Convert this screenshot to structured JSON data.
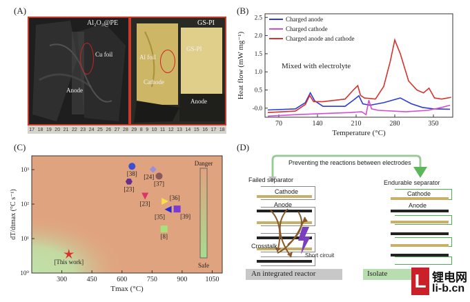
{
  "panel_labels": {
    "a": "(A)",
    "b": "(B)",
    "c": "(C)",
    "d": "(D)"
  },
  "panel_a": {
    "left_title": "Al₂O₃@PE",
    "left_cu": "Cu foil",
    "left_anode": "Anode",
    "right_title": "GS-PI",
    "right_al": "Al foil",
    "right_gspi": "GS-PI",
    "right_cathode": "Cathode",
    "right_anode": "Anode",
    "ruler_left": [
      "17",
      "18",
      "19",
      "20",
      "21",
      "22",
      "23",
      "24",
      "25",
      "26",
      "27",
      "28",
      "29"
    ],
    "ruler_right": [
      "8",
      "9",
      "10",
      "11",
      "12",
      "13",
      "14",
      "15",
      "16",
      "17",
      "18"
    ]
  },
  "panel_b": {
    "annotation": "Mixed with electrolyte",
    "colors": {
      "anode": "#2b3bd8",
      "cathode": "#d64ad6",
      "both": "#d8302a"
    }
  },
  "panel_c": {
    "danger_label": "Danger",
    "safe_label": "Safe",
    "this_work_label": "[This work]",
    "colors": {
      "bg": "#e0a37f",
      "safe": "#bfe2a8"
    }
  },
  "panel_d": {
    "banner": "Preventing the reactions between electrodes",
    "failed_separator": "Failed separator",
    "cathode": "Cathode",
    "anode": "Anode",
    "crosstalk": "Crosstalk",
    "short_circuit": "Short circuit",
    "integrated": "An integrated reactor",
    "endurable_separator": "Endurable separator",
    "cathode_r": "Cathode",
    "anode_r": "Anode",
    "isolated": "Isolate"
  },
  "watermark": {
    "cn": "锂电网",
    "url": "li-b.cn",
    "logo_letter": "L"
  },
  "chart_data": [
    {
      "type": "line",
      "panel": "B",
      "title": "",
      "xlabel": "Temperature (°C)",
      "ylabel": "Heat flow (mW mg⁻¹)",
      "xlim": [
        45,
        385
      ],
      "ylim": [
        -0.25,
        2.6
      ],
      "xticks": [
        "70",
        "140",
        "210",
        "280",
        "350"
      ],
      "xtick_values": [
        70,
        140,
        210,
        280,
        350
      ],
      "yticks": [
        "-0.0",
        "0.5",
        "1.0",
        "1.5",
        "2.0",
        "2.5"
      ],
      "ytick_values": [
        0.0,
        0.5,
        1.0,
        1.5,
        2.0,
        2.5
      ],
      "series": [
        {
          "name": "Charged anode",
          "color": "#2b3bd8",
          "points": [
            [
              50,
              -0.05
            ],
            [
              100,
              -0.02
            ],
            [
              118,
              0.15
            ],
            [
              127,
              0.42
            ],
            [
              135,
              0.2
            ],
            [
              150,
              0.05
            ],
            [
              190,
              0.05
            ],
            [
              205,
              0.22
            ],
            [
              215,
              0.34
            ],
            [
              222,
              0.12
            ],
            [
              235,
              0.08
            ],
            [
              260,
              0.15
            ],
            [
              290,
              0.28
            ],
            [
              310,
              0.12
            ],
            [
              330,
              0.02
            ],
            [
              350,
              -0.02
            ],
            [
              380,
              -0.03
            ]
          ]
        },
        {
          "name": "Charged cathode",
          "color": "#d64ad6",
          "points": [
            [
              50,
              -0.22
            ],
            [
              100,
              -0.18
            ],
            [
              150,
              -0.15
            ],
            [
              200,
              -0.12
            ],
            [
              220,
              -0.1
            ],
            [
              228,
              -0.18
            ],
            [
              233,
              0.22
            ],
            [
              238,
              -0.02
            ],
            [
              250,
              -0.06
            ],
            [
              300,
              -0.1
            ],
            [
              340,
              -0.06
            ],
            [
              365,
              0.02
            ],
            [
              380,
              0.08
            ]
          ]
        },
        {
          "name": "Charged anode and cathode",
          "color": "#d8302a",
          "points": [
            [
              50,
              -0.12
            ],
            [
              100,
              -0.08
            ],
            [
              118,
              0.1
            ],
            [
              126,
              0.35
            ],
            [
              133,
              0.18
            ],
            [
              150,
              0.18
            ],
            [
              190,
              0.25
            ],
            [
              205,
              0.5
            ],
            [
              213,
              0.62
            ],
            [
              218,
              0.35
            ],
            [
              225,
              0.28
            ],
            [
              245,
              0.25
            ],
            [
              260,
              0.6
            ],
            [
              272,
              1.3
            ],
            [
              280,
              1.88
            ],
            [
              290,
              1.5
            ],
            [
              305,
              0.75
            ],
            [
              320,
              0.5
            ],
            [
              332,
              0.42
            ],
            [
              342,
              0.55
            ],
            [
              352,
              0.28
            ],
            [
              365,
              0.25
            ],
            [
              382,
              0.3
            ]
          ]
        }
      ]
    },
    {
      "type": "scatter",
      "panel": "C",
      "title": "",
      "xlabel": "Tmax (°C)",
      "ylabel": "dT/dtmax (°C s⁻¹)",
      "xlim": [
        150,
        1100
      ],
      "ylim_log10": [
        0,
        3.4
      ],
      "log_y": true,
      "xticks": [
        "300",
        "450",
        "600",
        "750",
        "900",
        "1050"
      ],
      "xtick_values": [
        300,
        450,
        600,
        750,
        900,
        1050
      ],
      "yticks": [
        "10⁰",
        "10¹",
        "10²",
        "10³"
      ],
      "ytick_values": [
        1,
        10,
        100,
        1000
      ],
      "points": [
        {
          "label": "[38]",
          "x": 650,
          "y": 1250,
          "color": "#3b4fd0",
          "shape": "circle"
        },
        {
          "label": "[24]",
          "x": 755,
          "y": 1020,
          "color": "#9b8fd8",
          "shape": "diamond"
        },
        {
          "label": "[37]",
          "x": 785,
          "y": 650,
          "color": "#8a5a5a",
          "shape": "circle"
        },
        {
          "label": "[23]",
          "x": 635,
          "y": 450,
          "color": "#6a2f8a",
          "shape": "hexagon"
        },
        {
          "label": "[23]",
          "x": 715,
          "y": 170,
          "color": "#e0316a",
          "shape": "triangle-down"
        },
        {
          "label": "[36]",
          "x": 815,
          "y": 120,
          "color": "#f5e04a",
          "shape": "triangle-right"
        },
        {
          "label": "[35]",
          "x": 830,
          "y": 70,
          "color": "#2b2bd0",
          "shape": "triangle-left"
        },
        {
          "label": "[39]",
          "x": 875,
          "y": 72,
          "color": "#7b3bd0",
          "shape": "square"
        },
        {
          "label": "[8]",
          "x": 810,
          "y": 19,
          "color": "#a8e07a",
          "shape": "square"
        },
        {
          "label": "[This work]",
          "x": 335,
          "y": 3.5,
          "color": "#d8302a",
          "shape": "star"
        }
      ]
    }
  ]
}
